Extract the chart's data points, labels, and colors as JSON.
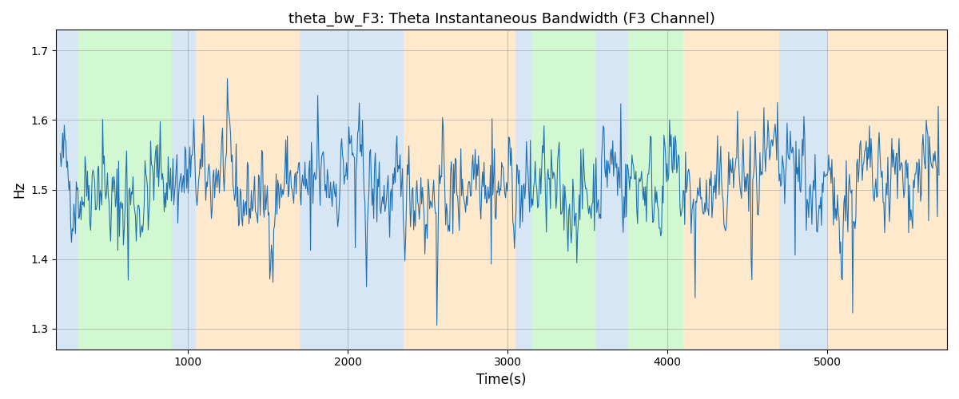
{
  "title": "theta_bw_F3: Theta Instantaneous Bandwidth (F3 Channel)",
  "xlabel": "Time(s)",
  "ylabel": "Hz",
  "xlim": [
    175,
    5750
  ],
  "ylim": [
    1.27,
    1.73
  ],
  "yticks": [
    1.3,
    1.4,
    1.5,
    1.6,
    1.7
  ],
  "xticks": [
    1000,
    2000,
    3000,
    4000,
    5000
  ],
  "line_color": "#2070b4",
  "line_width": 0.8,
  "figsize": [
    12,
    5
  ],
  "dpi": 100,
  "signal_mean": 1.505,
  "seed": 42,
  "n_points": 1100,
  "x_start": 200,
  "x_end": 5700,
  "background_regions": [
    {
      "xmin": 175,
      "xmax": 310,
      "color": "#a8c8e8",
      "alpha": 0.45
    },
    {
      "xmin": 310,
      "xmax": 900,
      "color": "#90ee90",
      "alpha": 0.4
    },
    {
      "xmin": 900,
      "xmax": 1050,
      "color": "#a8c8e8",
      "alpha": 0.45
    },
    {
      "xmin": 1050,
      "xmax": 1700,
      "color": "#ffc880",
      "alpha": 0.4
    },
    {
      "xmin": 1700,
      "xmax": 2350,
      "color": "#a8c8e8",
      "alpha": 0.45
    },
    {
      "xmin": 2350,
      "xmax": 3050,
      "color": "#ffc880",
      "alpha": 0.4
    },
    {
      "xmin": 3050,
      "xmax": 3150,
      "color": "#a8c8e8",
      "alpha": 0.45
    },
    {
      "xmin": 3150,
      "xmax": 3550,
      "color": "#90ee90",
      "alpha": 0.4
    },
    {
      "xmin": 3550,
      "xmax": 3750,
      "color": "#a8c8e8",
      "alpha": 0.45
    },
    {
      "xmin": 3750,
      "xmax": 4100,
      "color": "#90ee90",
      "alpha": 0.4
    },
    {
      "xmin": 4100,
      "xmax": 4700,
      "color": "#ffc880",
      "alpha": 0.4
    },
    {
      "xmin": 4700,
      "xmax": 5000,
      "color": "#a8c8e8",
      "alpha": 0.45
    },
    {
      "xmin": 5000,
      "xmax": 5200,
      "color": "#ffc880",
      "alpha": 0.4
    },
    {
      "xmin": 5200,
      "xmax": 5750,
      "color": "#ffc880",
      "alpha": 0.4
    }
  ]
}
